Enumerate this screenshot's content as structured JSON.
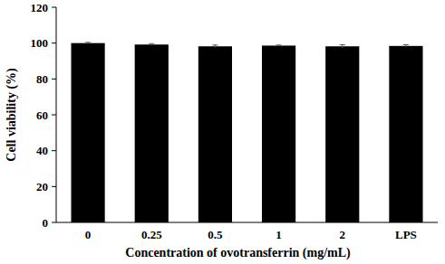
{
  "chart_data": {
    "type": "bar",
    "x_label": "Concentration of ovotransferrin (mg/mL)",
    "y_label": "Cell viability (%)",
    "categories": [
      "0",
      "0.25",
      "0.5",
      "1",
      "2",
      "LPS"
    ],
    "values": [
      100,
      99.2,
      98.2,
      98.6,
      98.2,
      98.4
    ],
    "errors": [
      0.4,
      0.5,
      0.7,
      0.3,
      0.9,
      0.7
    ],
    "color": "#000000",
    "ylim": [
      0,
      120
    ],
    "yticks": [
      0,
      20,
      40,
      60,
      80,
      100,
      120
    ],
    "grid": false
  }
}
